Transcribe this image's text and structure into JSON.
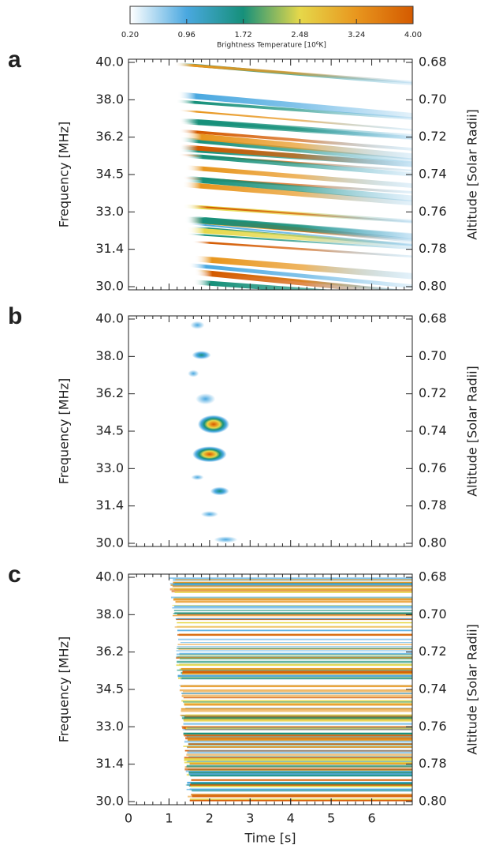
{
  "colorbar": {
    "label": "Brightness Temperature [10⁶K]",
    "lim": [
      0.2,
      4
    ],
    "ticks": [
      {
        "value": 0.2,
        "label": "0.20"
      },
      {
        "value": 0.96,
        "label": "0.96"
      },
      {
        "value": 1.72,
        "label": "1.72"
      },
      {
        "value": 2.48,
        "label": "2.48"
      },
      {
        "value": 3.24,
        "label": "3.24"
      },
      {
        "value": 4,
        "label": "4.00"
      }
    ],
    "colormap": [
      "#ffffff",
      "#4aa8e0",
      "#16907a",
      "#e6d84a",
      "#e8961e",
      "#d45a00"
    ]
  },
  "chart_data": [
    {
      "type": "heatmap",
      "panel_label": "a",
      "ylabel": "Frequency [MHz]",
      "y2label": "Altitude [Solar Radii]",
      "yticks": [
        {
          "value": 40,
          "label": "40.0"
        },
        {
          "value": 38,
          "label": "38.0"
        },
        36.2,
        34.5,
        {
          "value": 33,
          "label": "33.0"
        },
        31.4,
        {
          "value": 30,
          "label": "30.0"
        }
      ],
      "y2lim": [
        0.68,
        0.8
      ],
      "y2ticks": [
        0.68,
        {
          "value": 0.7,
          "label": "0.70"
        },
        0.72,
        0.74,
        0.76,
        0.78,
        {
          "value": 0.8,
          "label": "0.80"
        }
      ],
      "xlim": [
        0,
        7
      ]
    },
    {
      "type": "heatmap",
      "panel_label": "b",
      "ylabel": "Frequency [MHz]",
      "y2label": "Altitude [Solar Radii]",
      "yticks": [
        {
          "value": 40,
          "label": "40.0"
        },
        {
          "value": 38,
          "label": "38.0"
        },
        36.2,
        34.5,
        {
          "value": 33,
          "label": "33.0"
        },
        31.4,
        {
          "value": 30,
          "label": "30.0"
        }
      ],
      "y2lim": [
        0.68,
        0.8
      ],
      "y2ticks": [
        0.68,
        {
          "value": 0.7,
          "label": "0.70"
        },
        0.72,
        0.74,
        0.76,
        0.78,
        {
          "value": 0.8,
          "label": "0.80"
        }
      ],
      "xlim": [
        0,
        7
      ]
    },
    {
      "type": "heatmap",
      "panel_label": "c",
      "ylabel": "Frequency [MHz]",
      "y2label": "Altitude [Solar Radii]",
      "yticks": [
        {
          "value": 40,
          "label": "40.0"
        },
        {
          "value": 38,
          "label": "38.0"
        },
        36.2,
        34.5,
        {
          "value": 33,
          "label": "33.0"
        },
        31.4,
        {
          "value": 30,
          "label": "30.0"
        }
      ],
      "y2lim": [
        0.68,
        0.8
      ],
      "y2ticks": [
        0.68,
        {
          "value": 0.7,
          "label": "0.70"
        },
        0.72,
        0.74,
        0.76,
        0.78,
        {
          "value": 0.8,
          "label": "0.80"
        }
      ],
      "xlim": [
        0,
        7
      ],
      "xticks": [
        0,
        1,
        2,
        3,
        4,
        5,
        6
      ],
      "xlabel": "Time [s]"
    }
  ]
}
